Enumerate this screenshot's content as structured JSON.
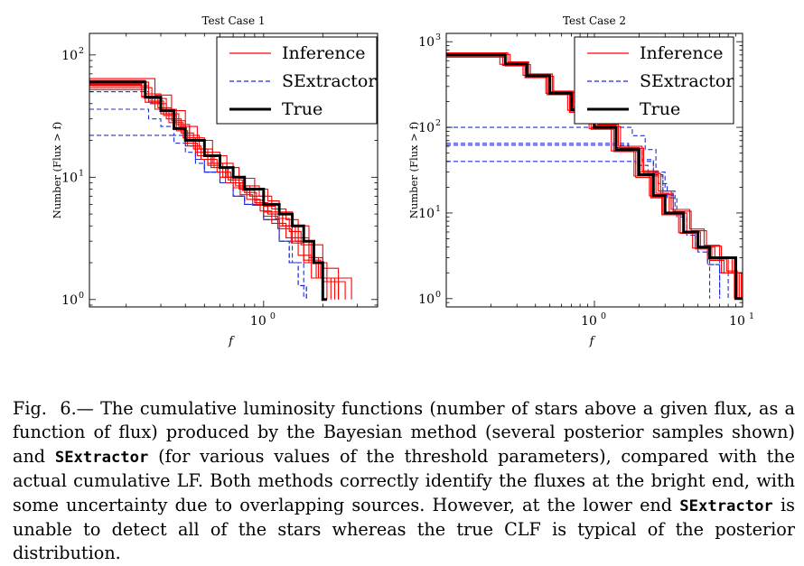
{
  "figure": {
    "legend_labels": [
      "Inference",
      "SExtractor",
      "True"
    ],
    "colors": {
      "inference": "#ff0000",
      "sextractor": "#1f2fd6",
      "true": "#000000"
    }
  },
  "chart_data": [
    {
      "type": "line",
      "title": "Test Case 1",
      "xlabel": "f",
      "ylabel": "Number (Flux > f)",
      "x_scale": "log",
      "y_scale": "log",
      "xlim": [
        0.13,
        3.8
      ],
      "ylim": [
        0.87,
        150
      ],
      "x_ticks": [
        {
          "value": 1,
          "label": "10",
          "exp": "0"
        }
      ],
      "y_ticks": [
        {
          "value": 1,
          "label": "10",
          "exp": "0"
        },
        {
          "value": 10,
          "label": "10",
          "exp": "1"
        },
        {
          "value": 100,
          "label": "10",
          "exp": "2"
        }
      ],
      "legend": "top-right",
      "series": [
        {
          "name": "True",
          "role": "true",
          "x": [
            0.13,
            0.2,
            0.25,
            0.3,
            0.35,
            0.4,
            0.5,
            0.6,
            0.7,
            0.8,
            1.0,
            1.2,
            1.4,
            1.6,
            1.8,
            2.0,
            2.1
          ],
          "y": [
            60,
            60,
            45,
            35,
            25,
            20,
            15,
            12,
            10,
            8,
            6,
            5,
            4,
            3,
            2,
            1,
            1
          ]
        },
        {
          "name": "SExtractor",
          "role": "sextractor",
          "x": [
            0.13,
            0.22,
            0.26,
            0.3,
            0.35,
            0.4,
            0.45,
            0.5,
            0.6,
            0.7,
            0.8,
            1.0,
            1.2,
            1.35,
            1.5,
            1.65
          ],
          "y": [
            50,
            50,
            40,
            33,
            25,
            19,
            14,
            11,
            9,
            7,
            6,
            4.5,
            3,
            2,
            1.3,
            1
          ]
        },
        {
          "name": "SExtractor",
          "role": "sextractor",
          "x": [
            0.13,
            0.2,
            0.26,
            0.3,
            0.35,
            0.4,
            0.45,
            0.5,
            0.6,
            0.7,
            0.8,
            1.0,
            1.2,
            1.4,
            1.6
          ],
          "y": [
            36,
            36,
            30,
            26,
            22,
            18,
            14,
            11,
            9,
            7,
            6,
            4.5,
            3,
            2,
            1
          ]
        },
        {
          "name": "SExtractor",
          "role": "sextractor",
          "x": [
            0.13,
            0.3,
            0.35,
            0.4,
            0.45,
            0.5,
            0.6,
            0.7,
            0.8,
            1.0,
            1.2,
            1.35,
            1.5,
            1.65
          ],
          "y": [
            22,
            22,
            19,
            16,
            13,
            11,
            9,
            7,
            6,
            4.5,
            3,
            2,
            1.3,
            1
          ]
        },
        {
          "name": "Inference",
          "role": "inference",
          "x": [
            0.13,
            0.2,
            0.25,
            0.3,
            0.36,
            0.42,
            0.5,
            0.6,
            0.7,
            0.8,
            0.95,
            1.1,
            1.3,
            1.5,
            1.7,
            1.9,
            2.2
          ],
          "y": [
            62,
            62,
            48,
            36,
            27,
            21,
            16,
            13,
            10,
            8.5,
            7,
            5.5,
            4.5,
            3.2,
            2.2,
            1.5,
            1
          ]
        },
        {
          "name": "Inference",
          "role": "inference",
          "x": [
            0.13,
            0.21,
            0.26,
            0.31,
            0.36,
            0.41,
            0.48,
            0.58,
            0.68,
            0.8,
            0.92,
            1.05,
            1.25,
            1.45,
            1.7,
            2.0,
            2.4
          ],
          "y": [
            56,
            56,
            42,
            32,
            24,
            18,
            14,
            11,
            9,
            7.5,
            6,
            5,
            4,
            3,
            2,
            1.4,
            1
          ]
        },
        {
          "name": "Inference",
          "role": "inference",
          "x": [
            0.13,
            0.19,
            0.24,
            0.29,
            0.34,
            0.4,
            0.47,
            0.55,
            0.65,
            0.75,
            0.9,
            1.0,
            1.2,
            1.4,
            1.6,
            1.85,
            2.1
          ],
          "y": [
            58,
            58,
            46,
            37,
            29,
            22,
            17,
            13,
            10,
            8,
            6.5,
            5.2,
            4,
            3,
            2,
            1.5,
            1
          ]
        },
        {
          "name": "Inference",
          "role": "inference",
          "x": [
            0.13,
            0.22,
            0.27,
            0.32,
            0.38,
            0.44,
            0.52,
            0.62,
            0.72,
            0.85,
            1.0,
            1.15,
            1.35,
            1.55,
            1.8,
            2.1,
            2.6
          ],
          "y": [
            54,
            54,
            40,
            30,
            23,
            17,
            13,
            10,
            8.5,
            7,
            5.8,
            4.6,
            3.6,
            2.8,
            2,
            1.4,
            1
          ]
        },
        {
          "name": "Inference",
          "role": "inference",
          "x": [
            0.13,
            0.2,
            0.26,
            0.32,
            0.37,
            0.42,
            0.5,
            0.56,
            0.66,
            0.78,
            0.9,
            1.05,
            1.25,
            1.5,
            1.75,
            2.0,
            2.3
          ],
          "y": [
            60,
            60,
            44,
            33,
            26,
            20,
            15,
            12,
            9.5,
            7.8,
            6.2,
            5,
            4,
            3,
            2.2,
            1.5,
            1
          ]
        },
        {
          "name": "Inference",
          "role": "inference",
          "x": [
            0.13,
            0.21,
            0.25,
            0.3,
            0.35,
            0.4,
            0.46,
            0.54,
            0.64,
            0.76,
            0.88,
            1.0,
            1.18,
            1.38,
            1.6,
            1.95,
            2.8
          ],
          "y": [
            52,
            52,
            41,
            33,
            25,
            19,
            15,
            12,
            9,
            7.2,
            5.9,
            4.8,
            3.8,
            2.9,
            2.1,
            1.5,
            1
          ]
        },
        {
          "name": "Inference",
          "role": "inference",
          "x": [
            0.13,
            0.23,
            0.28,
            0.34,
            0.4,
            0.46,
            0.55,
            0.65,
            0.75,
            0.9,
            1.05,
            1.2,
            1.4,
            1.7,
            2.0,
            2.4
          ],
          "y": [
            64,
            64,
            47,
            35,
            26,
            20,
            15,
            12,
            9.8,
            8,
            6.4,
            5.2,
            4,
            2.8,
            1.8,
            1
          ]
        },
        {
          "name": "Inference",
          "role": "inference",
          "x": [
            0.13,
            0.2,
            0.24,
            0.28,
            0.33,
            0.39,
            0.45,
            0.52,
            0.6,
            0.7,
            0.82,
            0.96,
            1.1,
            1.3,
            1.5,
            1.75,
            2.0
          ],
          "y": [
            57,
            57,
            45,
            36,
            28,
            21,
            16,
            12.5,
            10,
            8.2,
            6.6,
            5.3,
            4.2,
            3.2,
            2.3,
            1.5,
            1
          ]
        }
      ]
    },
    {
      "type": "line",
      "title": "Test Case 2",
      "xlabel": "f",
      "ylabel": "Number (Flux > f)",
      "x_scale": "log",
      "y_scale": "log",
      "xlim": [
        0.1,
        10
      ],
      "ylim": [
        0.8,
        1250
      ],
      "x_ticks": [
        {
          "value": 1,
          "label": "10",
          "exp": "0"
        },
        {
          "value": 10,
          "label": "10",
          "exp": "1"
        }
      ],
      "y_ticks": [
        {
          "value": 1,
          "label": "10",
          "exp": "0"
        },
        {
          "value": 10,
          "label": "10",
          "exp": "1"
        },
        {
          "value": 100,
          "label": "10",
          "exp": "2"
        },
        {
          "value": 1000,
          "label": "10",
          "exp": "3"
        }
      ],
      "legend": "top-right",
      "series": [
        {
          "name": "True",
          "role": "true",
          "x": [
            0.1,
            0.18,
            0.25,
            0.35,
            0.5,
            0.7,
            1.0,
            1.4,
            2.0,
            2.5,
            3.0,
            4.0,
            5.0,
            6.0,
            8.0,
            9.0,
            10.0
          ],
          "y": [
            700,
            700,
            550,
            400,
            250,
            160,
            100,
            55,
            28,
            16,
            10,
            6,
            4,
            3,
            3,
            1,
            1
          ]
        },
        {
          "name": "SExtractor",
          "role": "sextractor",
          "x": [
            0.1,
            1.4,
            1.8,
            2.2,
            2.6,
            3.0,
            3.5,
            4.0,
            5.0,
            6.0,
            7.0,
            8.0
          ],
          "y": [
            100,
            100,
            80,
            55,
            30,
            18,
            10,
            6,
            4,
            3,
            2,
            1
          ]
        },
        {
          "name": "SExtractor",
          "role": "sextractor",
          "x": [
            0.1,
            1.3,
            1.7,
            2.1,
            2.5,
            2.9,
            3.4,
            4.0,
            4.8,
            5.8,
            7.0
          ],
          "y": [
            65,
            65,
            55,
            42,
            28,
            17,
            10,
            6,
            4,
            2.5,
            1
          ]
        },
        {
          "name": "SExtractor",
          "role": "sextractor",
          "x": [
            0.1,
            1.3,
            1.7,
            2.1,
            2.5,
            2.9,
            3.4,
            4.0,
            4.8,
            5.8,
            7.0
          ],
          "y": [
            62,
            62,
            52,
            40,
            27,
            16,
            9.5,
            6,
            4,
            2.5,
            1
          ]
        },
        {
          "name": "SExtractor",
          "role": "sextractor",
          "x": [
            0.1,
            1.5,
            1.9,
            2.3,
            2.7,
            3.1,
            3.6,
            4.2,
            5.0,
            6.0
          ],
          "y": [
            40,
            40,
            36,
            30,
            22,
            15,
            9,
            5.5,
            3.5,
            1
          ]
        },
        {
          "name": "Inference",
          "role": "inference",
          "x": [
            0.1,
            0.18,
            0.25,
            0.35,
            0.5,
            0.7,
            1.0,
            1.4,
            2.0,
            2.6,
            3.2,
            4.2,
            5.2,
            6.5,
            8.0,
            9.5
          ],
          "y": [
            720,
            720,
            560,
            410,
            260,
            165,
            105,
            58,
            30,
            17,
            10,
            6,
            4,
            3,
            2,
            1
          ]
        },
        {
          "name": "Inference",
          "role": "inference",
          "x": [
            0.1,
            0.17,
            0.24,
            0.34,
            0.48,
            0.68,
            0.95,
            1.35,
            1.9,
            2.4,
            2.9,
            3.8,
            4.8,
            6.0,
            7.5,
            9.0
          ],
          "y": [
            680,
            680,
            530,
            380,
            240,
            150,
            95,
            52,
            26,
            15,
            9.5,
            5.8,
            3.8,
            2.8,
            2,
            1
          ]
        },
        {
          "name": "Inference",
          "role": "inference",
          "x": [
            0.1,
            0.19,
            0.26,
            0.36,
            0.52,
            0.72,
            1.05,
            1.45,
            2.1,
            2.7,
            3.3,
            4.4,
            5.5,
            7.0,
            8.5,
            9.8
          ],
          "y": [
            740,
            740,
            580,
            420,
            265,
            170,
            108,
            60,
            31,
            18,
            11,
            6.5,
            4.2,
            3,
            2,
            1
          ]
        },
        {
          "name": "Inference",
          "role": "inference",
          "x": [
            0.1,
            0.18,
            0.25,
            0.34,
            0.49,
            0.69,
            0.98,
            1.38,
            1.95,
            2.45,
            3.0,
            4.0,
            5.0,
            6.2,
            7.8,
            9.2
          ],
          "y": [
            660,
            660,
            520,
            390,
            245,
            155,
            98,
            54,
            27,
            15.5,
            9.8,
            6,
            3.9,
            2.9,
            2.1,
            1
          ]
        },
        {
          "name": "Inference",
          "role": "inference",
          "x": [
            0.1,
            0.2,
            0.27,
            0.37,
            0.53,
            0.74,
            1.08,
            1.5,
            2.15,
            2.8,
            3.4,
            4.5,
            5.7,
            7.2,
            8.8,
            9.8
          ],
          "y": [
            710,
            710,
            540,
            395,
            255,
            162,
            102,
            57,
            29,
            16.5,
            10.5,
            6.2,
            4.1,
            3,
            2,
            1
          ]
        },
        {
          "name": "Inference",
          "role": "inference",
          "x": [
            0.1,
            0.17,
            0.23,
            0.33,
            0.47,
            0.66,
            0.92,
            1.3,
            1.85,
            2.35,
            2.85,
            3.7,
            4.6,
            5.8,
            7.2,
            8.8
          ],
          "y": [
            690,
            690,
            545,
            405,
            250,
            158,
            97,
            53,
            27,
            15.8,
            9.6,
            5.9,
            3.9,
            2.9,
            2,
            1
          ]
        }
      ]
    }
  ],
  "caption": {
    "lead": "Fig.",
    "number": "6.—",
    "p1": "The cumulative luminosity functions (number of stars above a given flux, as a function of flux) produced by the Bayesian method (several posterior samples shown) and",
    "code1": "SExtractor",
    "p2": "(for various values of the threshold parameters), compared with the actual cumulative LF. Both methods correctly identify the fluxes at the bright end, with some uncertainty due to overlapping sources. However, at the lower end",
    "code2": "SExtractor",
    "p3": "is unable to detect all of the stars whereas the true CLF is typical of the posterior distribution."
  }
}
